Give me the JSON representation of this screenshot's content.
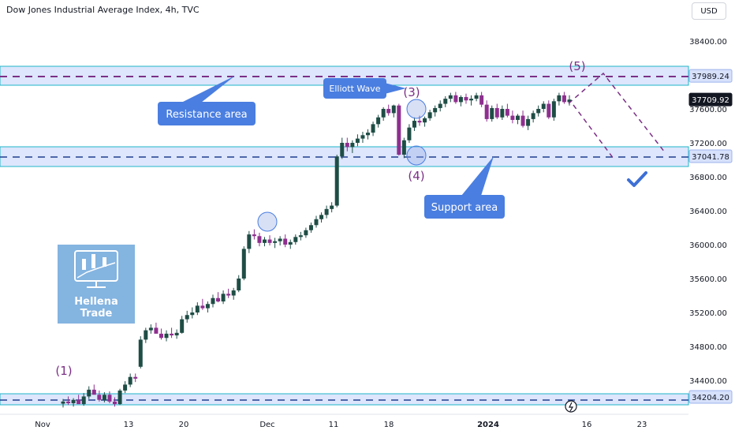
{
  "header": {
    "title": "Dow Jones Industrial Average Index, 4h, TVC",
    "currency": "USD"
  },
  "logo": {
    "line1": "Hellena",
    "line2": "Trade"
  },
  "colors": {
    "up": "#1e4d45",
    "down": "#8e2f8f",
    "zone_fill": "#cfdcfb",
    "zone_border": "#1fb5c9",
    "dashed": "#7b2f86",
    "callout": "#4a7ee0",
    "check": "#3d6fd6"
  },
  "annotations": {
    "resistance_label": "Resistance area",
    "support_label": "Support area",
    "elliott_label": "Elliott Wave",
    "wave_1": "(1)",
    "wave_3": "(3)",
    "wave_4": "(4)",
    "wave_5": "(5)"
  },
  "chart_data": {
    "type": "candlestick",
    "title": "Dow Jones Industrial Average Index, 4h, TVC",
    "y_ticks": [
      "38400.00",
      "37600.00",
      "37200.00",
      "36800.00",
      "36400.00",
      "36000.00",
      "35600.00",
      "35200.00",
      "34800.00",
      "34400.00"
    ],
    "x_ticks": [
      {
        "label": "Nov",
        "bold": false
      },
      {
        "label": "13",
        "bold": false
      },
      {
        "label": "20",
        "bold": false
      },
      {
        "label": "Dec",
        "bold": false
      },
      {
        "label": "11",
        "bold": false
      },
      {
        "label": "18",
        "bold": false
      },
      {
        "label": "2024",
        "bold": true
      },
      {
        "label": "16",
        "bold": false
      },
      {
        "label": "23",
        "bold": false
      }
    ],
    "price_tags": [
      {
        "value": "37989.24",
        "kind": "level"
      },
      {
        "value": "37709.92",
        "kind": "last"
      },
      {
        "value": "37041.78",
        "kind": "level"
      },
      {
        "value": "34204.20",
        "kind": "level"
      }
    ],
    "levels": {
      "resistance": 37989.24,
      "support": 37041.78,
      "base": 34204.2,
      "last": 37709.92
    },
    "ohlc": [
      [
        34125,
        34180,
        34080,
        34150
      ],
      [
        34150,
        34210,
        34110,
        34130
      ],
      [
        34130,
        34190,
        34090,
        34170
      ],
      [
        34170,
        34230,
        34140,
        34120
      ],
      [
        34120,
        34250,
        34100,
        34210
      ],
      [
        34210,
        34330,
        34180,
        34290
      ],
      [
        34290,
        34350,
        34240,
        34230
      ],
      [
        34230,
        34280,
        34150,
        34170
      ],
      [
        34170,
        34260,
        34140,
        34230
      ],
      [
        34230,
        34270,
        34130,
        34150
      ],
      [
        34150,
        34200,
        34090,
        34120
      ],
      [
        34120,
        34300,
        34110,
        34280
      ],
      [
        34280,
        34390,
        34250,
        34350
      ],
      [
        34350,
        34480,
        34320,
        34440
      ],
      [
        34440,
        34480,
        34380,
        34420
      ],
      [
        34560,
        34920,
        34540,
        34880
      ],
      [
        34880,
        35020,
        34840,
        34990
      ],
      [
        34990,
        35060,
        34950,
        35020
      ],
      [
        35020,
        35080,
        34960,
        34950
      ],
      [
        34950,
        35010,
        34880,
        34900
      ],
      [
        34900,
        34990,
        34860,
        34950
      ],
      [
        34950,
        35020,
        34900,
        34930
      ],
      [
        34930,
        35000,
        34890,
        34960
      ],
      [
        34960,
        35160,
        34950,
        35120
      ],
      [
        35120,
        35220,
        35080,
        35170
      ],
      [
        35170,
        35260,
        35130,
        35200
      ],
      [
        35200,
        35320,
        35170,
        35280
      ],
      [
        35280,
        35360,
        35230,
        35250
      ],
      [
        35250,
        35330,
        35200,
        35300
      ],
      [
        35300,
        35410,
        35260,
        35370
      ],
      [
        35370,
        35440,
        35320,
        35330
      ],
      [
        35330,
        35460,
        35300,
        35420
      ],
      [
        35420,
        35480,
        35370,
        35400
      ],
      [
        35400,
        35490,
        35350,
        35460
      ],
      [
        35460,
        35640,
        35440,
        35600
      ],
      [
        35600,
        35980,
        35580,
        35950
      ],
      [
        35950,
        36160,
        35900,
        36120
      ],
      [
        36120,
        36180,
        36060,
        36100
      ],
      [
        36100,
        36140,
        35980,
        36020
      ],
      [
        36020,
        36090,
        35980,
        36060
      ],
      [
        36060,
        36110,
        35990,
        36020
      ],
      [
        36020,
        36080,
        35960,
        36040
      ],
      [
        36040,
        36100,
        35990,
        36070
      ],
      [
        36070,
        36120,
        35970,
        36000
      ],
      [
        36000,
        36060,
        35950,
        36030
      ],
      [
        36030,
        36120,
        36000,
        36090
      ],
      [
        36090,
        36150,
        36050,
        36110
      ],
      [
        36110,
        36200,
        36080,
        36170
      ],
      [
        36170,
        36260,
        36140,
        36230
      ],
      [
        36230,
        36340,
        36200,
        36300
      ],
      [
        36300,
        36380,
        36260,
        36350
      ],
      [
        36350,
        36460,
        36310,
        36420
      ],
      [
        36420,
        36500,
        36380,
        36460
      ],
      [
        36460,
        37060,
        36440,
        37040
      ],
      [
        37040,
        37260,
        37010,
        37200
      ],
      [
        37200,
        37260,
        37100,
        37150
      ],
      [
        37150,
        37230,
        37080,
        37200
      ],
      [
        37200,
        37300,
        37160,
        37250
      ],
      [
        37250,
        37330,
        37200,
        37290
      ],
      [
        37290,
        37360,
        37240,
        37320
      ],
      [
        37320,
        37450,
        37280,
        37420
      ],
      [
        37420,
        37530,
        37380,
        37500
      ],
      [
        37500,
        37620,
        37460,
        37600
      ],
      [
        37600,
        37650,
        37520,
        37550
      ],
      [
        37550,
        37650,
        37500,
        37640
      ],
      [
        37640,
        37660,
        37050,
        37060
      ],
      [
        37060,
        37260,
        37020,
        37230
      ],
      [
        37230,
        37420,
        37200,
        37380
      ],
      [
        37380,
        37500,
        37340,
        37460
      ],
      [
        37460,
        37520,
        37400,
        37440
      ],
      [
        37440,
        37510,
        37390,
        37490
      ],
      [
        37490,
        37590,
        37460,
        37560
      ],
      [
        37560,
        37640,
        37510,
        37610
      ],
      [
        37610,
        37700,
        37570,
        37660
      ],
      [
        37660,
        37750,
        37620,
        37720
      ],
      [
        37720,
        37790,
        37680,
        37760
      ],
      [
        37760,
        37800,
        37660,
        37680
      ],
      [
        37680,
        37760,
        37630,
        37740
      ],
      [
        37740,
        37780,
        37660,
        37700
      ],
      [
        37700,
        37760,
        37640,
        37720
      ],
      [
        37720,
        37790,
        37690,
        37760
      ],
      [
        37760,
        37800,
        37620,
        37650
      ],
      [
        37650,
        37700,
        37450,
        37480
      ],
      [
        37480,
        37640,
        37450,
        37610
      ],
      [
        37610,
        37660,
        37480,
        37500
      ],
      [
        37500,
        37640,
        37470,
        37600
      ],
      [
        37600,
        37660,
        37500,
        37520
      ],
      [
        37520,
        37580,
        37430,
        37470
      ],
      [
        37470,
        37540,
        37420,
        37520
      ],
      [
        37520,
        37580,
        37380,
        37400
      ],
      [
        37400,
        37520,
        37350,
        37480
      ],
      [
        37480,
        37580,
        37440,
        37550
      ],
      [
        37550,
        37640,
        37510,
        37600
      ],
      [
        37600,
        37690,
        37560,
        37660
      ],
      [
        37660,
        37700,
        37480,
        37500
      ],
      [
        37500,
        37720,
        37460,
        37690
      ],
      [
        37690,
        37790,
        37640,
        37760
      ],
      [
        37760,
        37800,
        37660,
        37680
      ],
      [
        37680,
        37760,
        37640,
        37710
      ]
    ]
  }
}
